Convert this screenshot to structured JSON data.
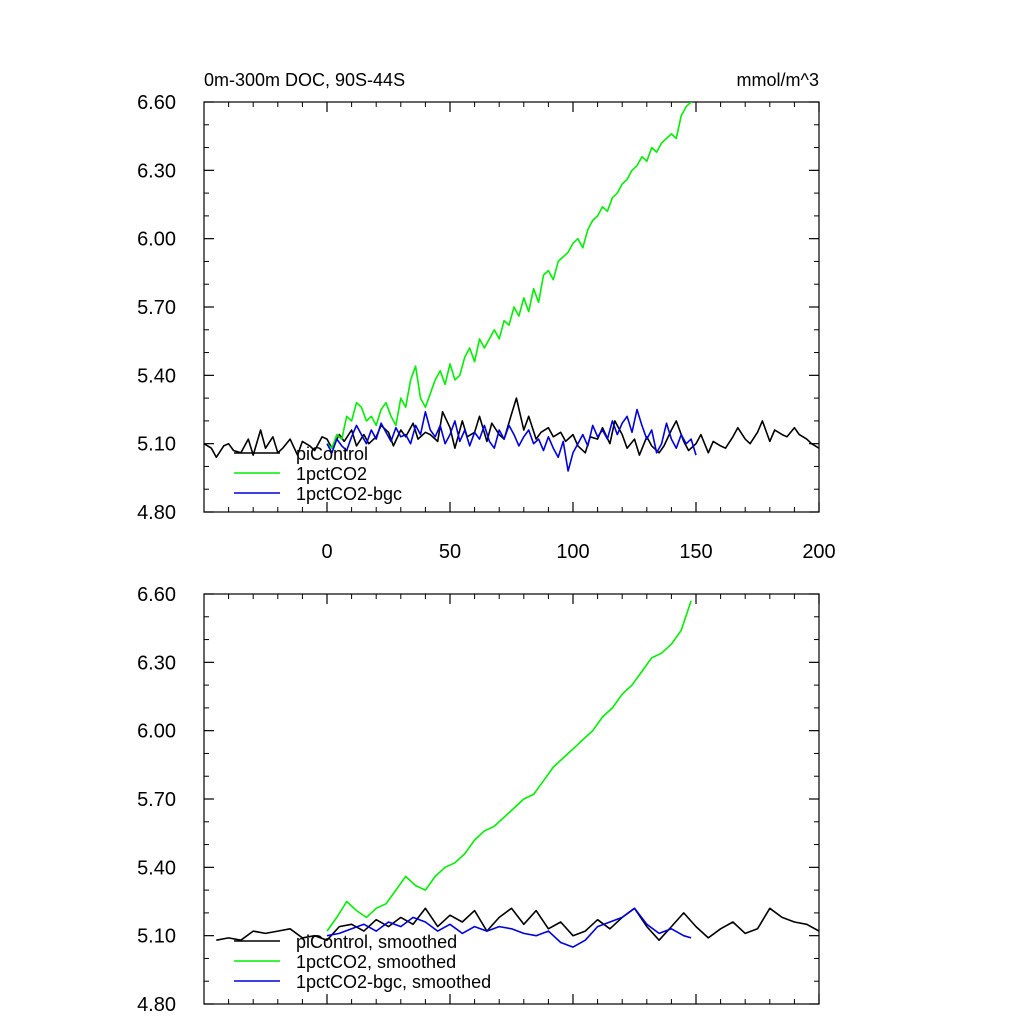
{
  "chart_data": [
    {
      "type": "line",
      "title": "0m-300m DOC, 90S-44S",
      "units": "mmol/m^3",
      "xlim": [
        -50,
        200
      ],
      "ylim": [
        4.8,
        6.6
      ],
      "xticks": [
        0,
        50,
        100,
        150,
        200
      ],
      "yticks": [
        4.8,
        5.1,
        5.4,
        5.7,
        6.0,
        6.3,
        6.6
      ],
      "ytick_labels": [
        "4.80",
        "5.10",
        "5.40",
        "5.70",
        "6.00",
        "6.30",
        "6.60"
      ],
      "legend_position": "bottom-left",
      "series": [
        {
          "name": "piControl",
          "color": "#000000",
          "x": [
            -50,
            -47,
            -45,
            -42,
            -40,
            -38,
            -35,
            -32,
            -30,
            -27,
            -25,
            -22,
            -20,
            -18,
            -15,
            -12,
            -10,
            -7,
            -5,
            -2,
            0,
            2,
            5,
            7,
            10,
            12,
            15,
            17,
            20,
            22,
            25,
            27,
            30,
            32,
            35,
            37,
            40,
            42,
            45,
            47,
            50,
            52,
            55,
            57,
            60,
            62,
            65,
            67,
            70,
            72,
            75,
            77,
            80,
            82,
            85,
            87,
            90,
            92,
            95,
            97,
            100,
            102,
            105,
            107,
            110,
            112,
            115,
            117,
            120,
            122,
            125,
            127,
            130,
            132,
            135,
            137,
            140,
            142,
            145,
            147,
            150,
            152,
            155,
            157,
            160,
            162,
            165,
            167,
            170,
            172,
            175,
            177,
            180,
            182,
            185,
            187,
            190,
            192,
            195,
            197,
            200
          ],
          "y": [
            5.1,
            5.08,
            5.04,
            5.09,
            5.1,
            5.07,
            5.06,
            5.12,
            5.05,
            5.16,
            5.08,
            5.13,
            5.06,
            5.08,
            5.12,
            5.05,
            5.11,
            5.09,
            5.07,
            5.13,
            5.12,
            5.08,
            5.14,
            5.11,
            5.16,
            5.09,
            5.14,
            5.1,
            5.13,
            5.18,
            5.15,
            5.09,
            5.16,
            5.13,
            5.19,
            5.12,
            5.15,
            5.14,
            5.11,
            5.24,
            5.17,
            5.08,
            5.2,
            5.13,
            5.15,
            5.22,
            5.11,
            5.19,
            5.14,
            5.12,
            5.23,
            5.3,
            5.16,
            5.22,
            5.12,
            5.15,
            5.17,
            5.13,
            5.15,
            5.11,
            5.14,
            5.09,
            5.06,
            5.13,
            5.12,
            5.17,
            5.1,
            5.2,
            5.14,
            5.08,
            5.12,
            5.05,
            5.13,
            5.09,
            5.06,
            5.09,
            5.16,
            5.2,
            5.11,
            5.07,
            5.1,
            5.14,
            5.06,
            5.11,
            5.09,
            5.08,
            5.13,
            5.17,
            5.12,
            5.1,
            5.15,
            5.2,
            5.11,
            5.16,
            5.14,
            5.13,
            5.17,
            5.14,
            5.12,
            5.1,
            5.08
          ]
        },
        {
          "name": "1pctCO2",
          "color": "#00ee00",
          "x": [
            0,
            2,
            4,
            6,
            8,
            10,
            12,
            14,
            16,
            18,
            20,
            22,
            24,
            26,
            28,
            30,
            32,
            34,
            36,
            38,
            40,
            42,
            44,
            46,
            48,
            50,
            52,
            54,
            56,
            58,
            60,
            62,
            64,
            66,
            68,
            70,
            72,
            74,
            76,
            78,
            80,
            82,
            84,
            86,
            88,
            90,
            92,
            94,
            96,
            98,
            100,
            102,
            104,
            106,
            108,
            110,
            112,
            114,
            116,
            118,
            120,
            122,
            124,
            126,
            128,
            130,
            132,
            134,
            136,
            138,
            140,
            142,
            144,
            146,
            148,
            150
          ],
          "y": [
            5.1,
            5.08,
            5.14,
            5.12,
            5.22,
            5.2,
            5.28,
            5.26,
            5.2,
            5.22,
            5.18,
            5.25,
            5.28,
            5.22,
            5.18,
            5.3,
            5.26,
            5.38,
            5.44,
            5.3,
            5.26,
            5.32,
            5.38,
            5.42,
            5.36,
            5.45,
            5.38,
            5.4,
            5.48,
            5.52,
            5.46,
            5.56,
            5.52,
            5.56,
            5.6,
            5.56,
            5.64,
            5.62,
            5.7,
            5.66,
            5.74,
            5.68,
            5.78,
            5.72,
            5.84,
            5.86,
            5.82,
            5.9,
            5.92,
            5.94,
            5.98,
            6.0,
            5.96,
            6.04,
            6.08,
            6.1,
            6.14,
            6.12,
            6.18,
            6.2,
            6.24,
            6.26,
            6.3,
            6.32,
            6.36,
            6.34,
            6.4,
            6.38,
            6.42,
            6.44,
            6.46,
            6.44,
            6.54,
            6.58,
            6.6,
            6.62
          ]
        },
        {
          "name": "1pctCO2-bgc",
          "color": "#0000dd",
          "x": [
            0,
            2,
            4,
            6,
            8,
            10,
            12,
            14,
            16,
            18,
            20,
            22,
            24,
            26,
            28,
            30,
            32,
            34,
            36,
            38,
            40,
            42,
            44,
            46,
            48,
            50,
            52,
            54,
            56,
            58,
            60,
            62,
            64,
            66,
            68,
            70,
            72,
            74,
            76,
            78,
            80,
            82,
            84,
            86,
            88,
            90,
            92,
            94,
            96,
            98,
            100,
            102,
            104,
            106,
            108,
            110,
            112,
            114,
            116,
            118,
            120,
            122,
            124,
            126,
            128,
            130,
            132,
            134,
            136,
            138,
            140,
            142,
            144,
            146,
            148,
            150
          ],
          "y": [
            5.1,
            5.06,
            5.12,
            5.09,
            5.07,
            5.13,
            5.18,
            5.14,
            5.1,
            5.16,
            5.12,
            5.19,
            5.15,
            5.11,
            5.17,
            5.13,
            5.14,
            5.1,
            5.18,
            5.14,
            5.24,
            5.16,
            5.13,
            5.18,
            5.1,
            5.14,
            5.2,
            5.11,
            5.16,
            5.09,
            5.15,
            5.12,
            5.18,
            5.11,
            5.08,
            5.16,
            5.12,
            5.18,
            5.14,
            5.09,
            5.13,
            5.16,
            5.1,
            5.12,
            5.07,
            5.13,
            5.08,
            5.04,
            5.11,
            4.98,
            5.06,
            5.1,
            5.14,
            5.09,
            5.18,
            5.13,
            5.16,
            5.12,
            5.2,
            5.14,
            5.19,
            5.22,
            5.15,
            5.25,
            5.18,
            5.12,
            5.16,
            5.06,
            5.1,
            5.19,
            5.12,
            5.08,
            5.14,
            5.1,
            5.12,
            5.05
          ]
        }
      ]
    },
    {
      "type": "line",
      "title": "",
      "units": "",
      "xlim": [
        -50,
        200
      ],
      "ylim": [
        4.8,
        6.6
      ],
      "xticks": [
        0,
        50,
        100,
        150,
        200
      ],
      "yticks": [
        4.8,
        5.1,
        5.4,
        5.7,
        6.0,
        6.3,
        6.6
      ],
      "ytick_labels": [
        "4.80",
        "5.10",
        "5.40",
        "5.70",
        "6.00",
        "6.30",
        "6.60"
      ],
      "legend_position": "bottom-left",
      "series": [
        {
          "name": "piControl, smoothed",
          "color": "#000000",
          "x": [
            -45,
            -40,
            -35,
            -30,
            -25,
            -20,
            -15,
            -10,
            -5,
            0,
            5,
            10,
            15,
            20,
            25,
            30,
            35,
            40,
            45,
            50,
            55,
            60,
            65,
            70,
            75,
            80,
            85,
            90,
            95,
            100,
            105,
            110,
            115,
            120,
            125,
            130,
            135,
            140,
            145,
            150,
            155,
            160,
            165,
            170,
            175,
            180,
            185,
            190,
            195,
            200
          ],
          "y": [
            5.08,
            5.09,
            5.08,
            5.12,
            5.11,
            5.12,
            5.13,
            5.09,
            5.1,
            5.08,
            5.14,
            5.15,
            5.12,
            5.17,
            5.14,
            5.18,
            5.15,
            5.22,
            5.14,
            5.19,
            5.16,
            5.21,
            5.12,
            5.18,
            5.22,
            5.15,
            5.21,
            5.13,
            5.16,
            5.1,
            5.12,
            5.17,
            5.13,
            5.18,
            5.22,
            5.14,
            5.08,
            5.14,
            5.2,
            5.14,
            5.09,
            5.13,
            5.16,
            5.11,
            5.13,
            5.22,
            5.18,
            5.16,
            5.15,
            5.12
          ]
        },
        {
          "name": "1pctCO2, smoothed",
          "color": "#00ee00",
          "x": [
            0,
            4,
            8,
            12,
            16,
            20,
            24,
            28,
            32,
            36,
            40,
            44,
            48,
            52,
            56,
            60,
            64,
            68,
            72,
            76,
            80,
            84,
            88,
            92,
            96,
            100,
            104,
            108,
            112,
            116,
            120,
            124,
            128,
            132,
            136,
            140,
            144,
            148
          ],
          "y": [
            5.12,
            5.18,
            5.25,
            5.21,
            5.18,
            5.22,
            5.24,
            5.3,
            5.36,
            5.32,
            5.3,
            5.36,
            5.4,
            5.42,
            5.46,
            5.52,
            5.56,
            5.58,
            5.62,
            5.66,
            5.7,
            5.72,
            5.78,
            5.84,
            5.88,
            5.92,
            5.96,
            6.0,
            6.06,
            6.1,
            6.16,
            6.2,
            6.26,
            6.32,
            6.34,
            6.38,
            6.44,
            6.57
          ]
        },
        {
          "name": "1pctCO2-bgc, smoothed",
          "color": "#0000dd",
          "x": [
            0,
            5,
            10,
            15,
            20,
            25,
            30,
            35,
            40,
            45,
            50,
            55,
            60,
            65,
            70,
            75,
            80,
            85,
            90,
            95,
            100,
            105,
            110,
            115,
            120,
            125,
            130,
            135,
            140,
            145,
            148
          ],
          "y": [
            5.1,
            5.11,
            5.13,
            5.15,
            5.12,
            5.16,
            5.14,
            5.18,
            5.16,
            5.12,
            5.15,
            5.11,
            5.14,
            5.12,
            5.14,
            5.13,
            5.11,
            5.1,
            5.12,
            5.07,
            5.05,
            5.08,
            5.14,
            5.16,
            5.18,
            5.22,
            5.15,
            5.11,
            5.13,
            5.1,
            5.09
          ]
        }
      ]
    }
  ]
}
